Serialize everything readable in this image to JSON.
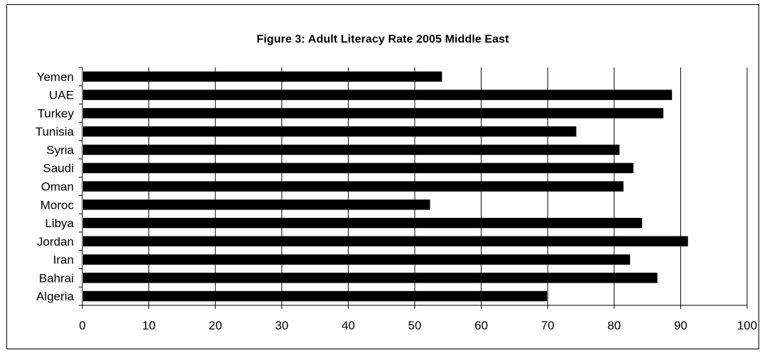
{
  "chart_data": {
    "type": "bar",
    "orientation": "horizontal",
    "title": "Figure 3: Adult Literacy Rate 2005  Middle East",
    "xlabel": "",
    "ylabel": "",
    "categories": [
      "Algeria",
      "Bahrai",
      "Iran",
      "Jordan",
      "Libya",
      "Moroc",
      "Oman",
      "Saudi",
      "Syria",
      "Tunisia",
      "Turkey",
      "UAE",
      "Yemen"
    ],
    "values": [
      69.9,
      86.5,
      82.4,
      91.1,
      84.2,
      52.3,
      81.4,
      82.9,
      80.8,
      74.3,
      87.4,
      88.7,
      54.1
    ],
    "xlim": [
      0,
      100
    ],
    "xticks": [
      0,
      10,
      20,
      30,
      40,
      50,
      60,
      70,
      80,
      90,
      100
    ],
    "grid": "vertical",
    "legend": "none",
    "bar_color": "#000000"
  }
}
